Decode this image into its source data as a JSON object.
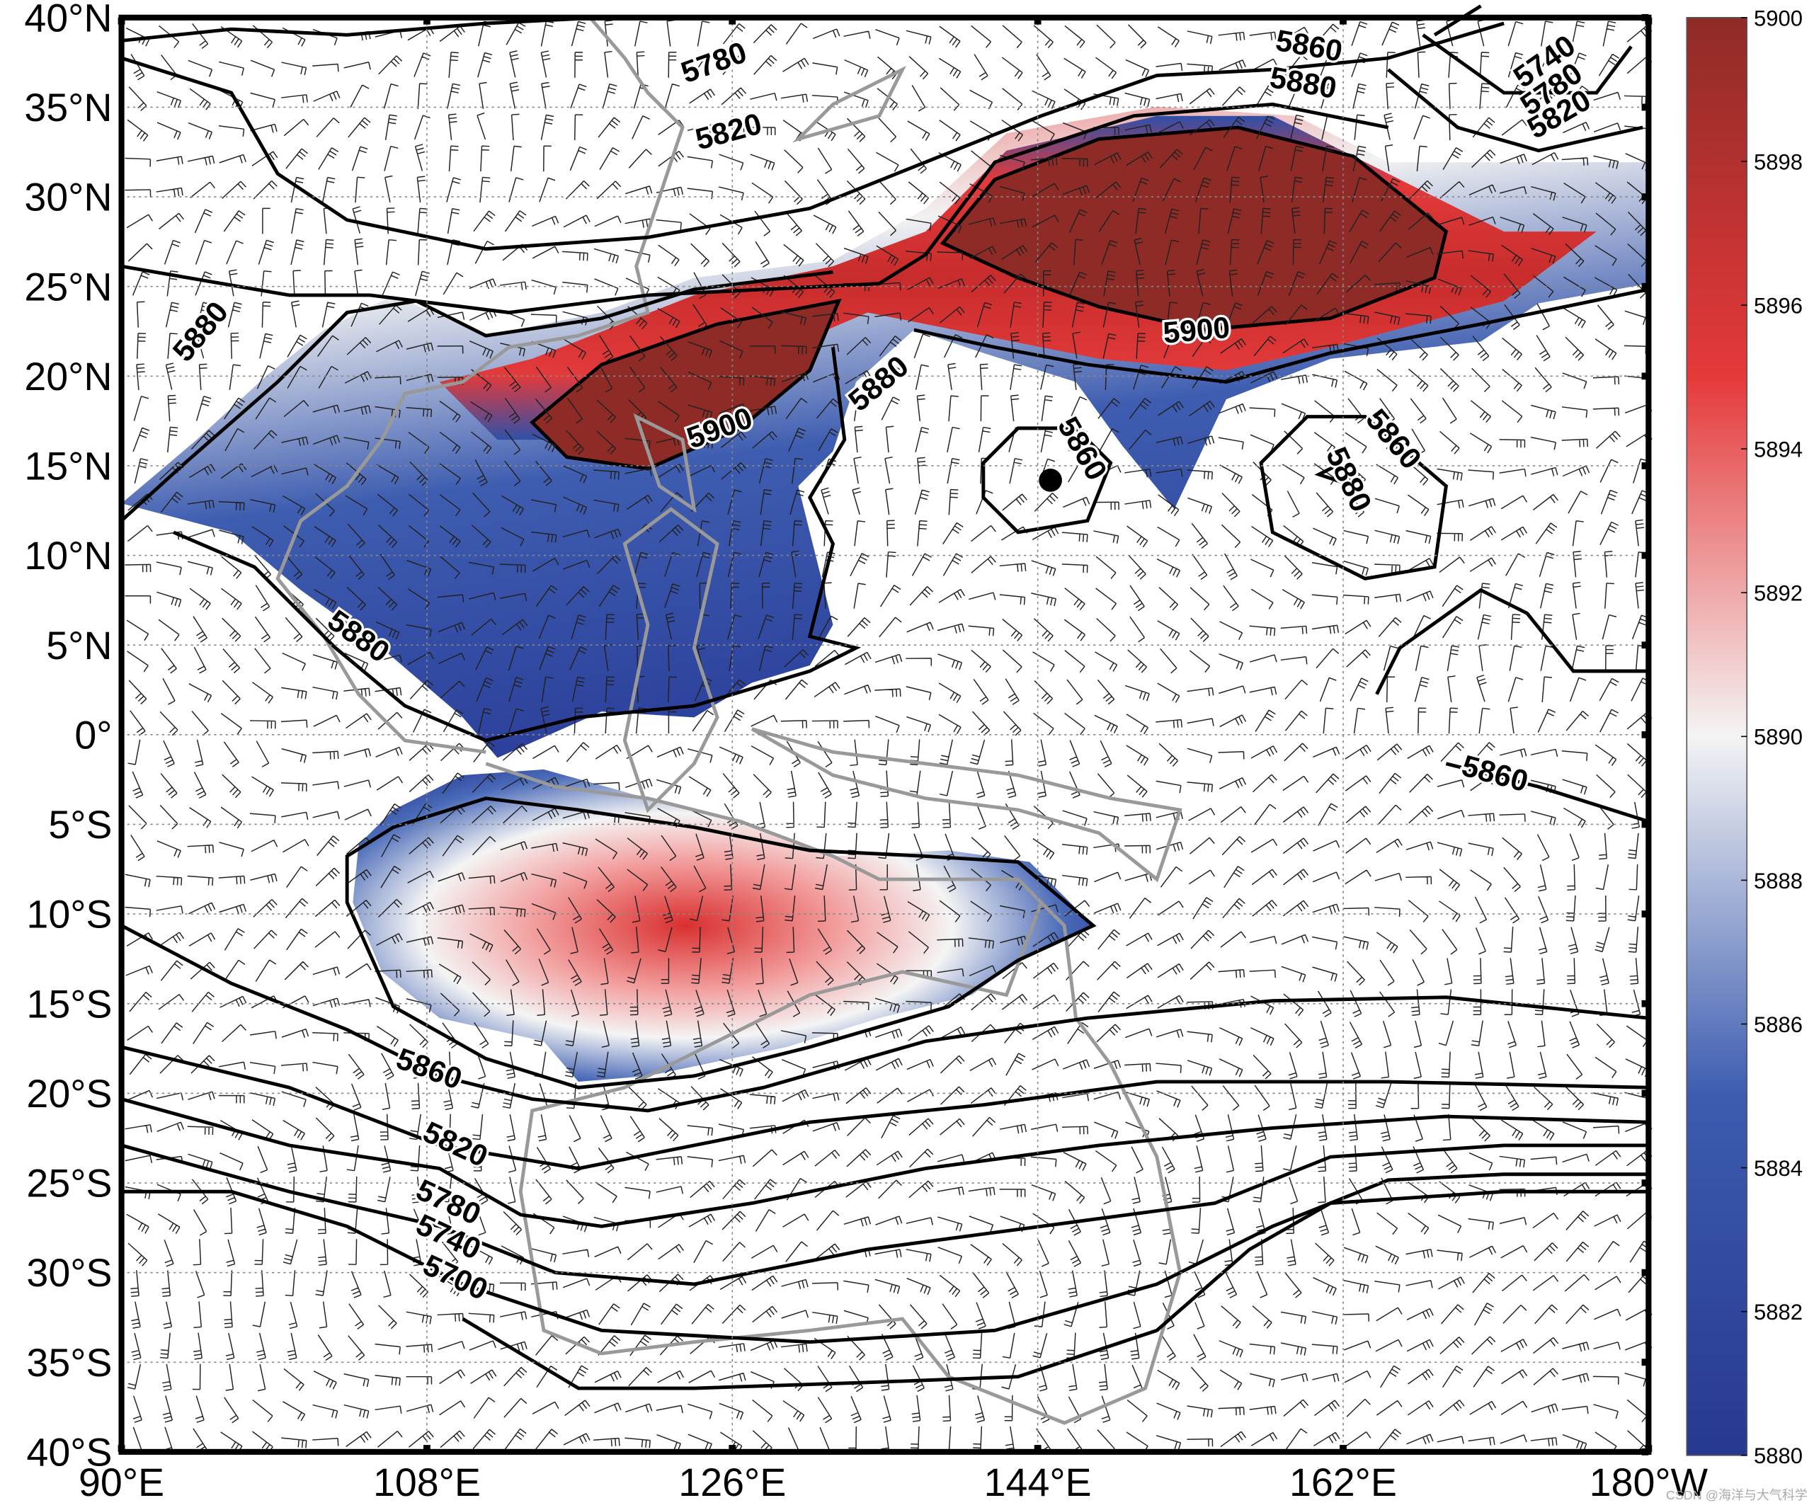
{
  "map": {
    "lat_ticks": [
      "40°N",
      "35°N",
      "30°N",
      "25°N",
      "20°N",
      "15°N",
      "10°N",
      "5°N",
      "0°",
      "5°S",
      "10°S",
      "15°S",
      "20°S",
      "25°S",
      "30°S",
      "35°S",
      "40°S"
    ],
    "lon_ticks": [
      "90°E",
      "108°E",
      "126°E",
      "144°E",
      "162°E",
      "180°W"
    ],
    "colorbar": {
      "lim": [
        5880,
        5900
      ],
      "ticks": [
        5880,
        5882,
        5884,
        5886,
        5888,
        5890,
        5892,
        5894,
        5896,
        5898,
        5900
      ]
    },
    "contour_labels": [
      "5780",
      "5820",
      "5860",
      "5880",
      "5740",
      "5780",
      "5820",
      "5880",
      "5900",
      "5880",
      "5900",
      "5860",
      "5860",
      "5880",
      "5880",
      "5860",
      "5860",
      "5820",
      "5780",
      "5740",
      "5700"
    ],
    "watermark": "CSDN @海洋与大气科学"
  }
}
